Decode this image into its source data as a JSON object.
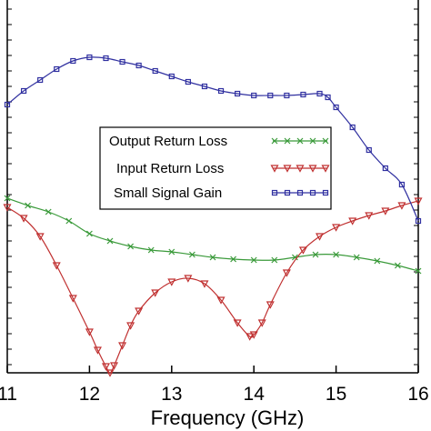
{
  "chart_data": {
    "type": "line",
    "xlabel": "Frequency (GHz)",
    "xlim": [
      11,
      16
    ],
    "x_ticks": [
      "11",
      "12",
      "13",
      "14",
      "15",
      "16"
    ],
    "grid": false,
    "legend_position": "center-right",
    "series": [
      {
        "name": "Output Return Loss",
        "color": "#3a9a3a",
        "marker": "x",
        "x": [
          11.0,
          11.25,
          11.5,
          11.75,
          12.0,
          12.25,
          12.5,
          12.75,
          13.0,
          13.25,
          13.5,
          13.75,
          14.0,
          14.25,
          14.5,
          14.75,
          15.0,
          15.25,
          15.5,
          15.75,
          16.0
        ],
        "values": [
          218,
          226,
          233,
          243,
          257,
          265,
          271,
          275,
          277,
          280,
          283,
          285,
          286,
          286,
          283,
          280,
          280,
          283,
          287,
          292,
          298
        ]
      },
      {
        "name": "Input Return Loss",
        "color": "#c03030",
        "marker": "triangle-down",
        "x": [
          11.0,
          11.2,
          11.4,
          11.6,
          11.8,
          12.0,
          12.1,
          12.2,
          12.25,
          12.3,
          12.4,
          12.5,
          12.6,
          12.8,
          13.0,
          13.2,
          13.4,
          13.6,
          13.8,
          13.95,
          14.0,
          14.1,
          14.2,
          14.4,
          14.6,
          14.8,
          15.0,
          15.2,
          15.4,
          15.6,
          15.8,
          16.0
        ],
        "values": [
          228,
          240,
          260,
          292,
          328,
          365,
          385,
          403,
          410,
          402,
          380,
          358,
          342,
          322,
          310,
          306,
          312,
          330,
          355,
          370,
          368,
          355,
          335,
          300,
          275,
          260,
          250,
          243,
          237,
          232,
          226,
          221
        ]
      },
      {
        "name": "Small Signal Gain",
        "color": "#3030a0",
        "marker": "square",
        "x": [
          11.0,
          11.2,
          11.4,
          11.6,
          11.8,
          12.0,
          12.2,
          12.4,
          12.6,
          12.8,
          13.0,
          13.2,
          13.4,
          13.6,
          13.8,
          14.0,
          14.2,
          14.4,
          14.6,
          14.8,
          14.9,
          15.0,
          15.2,
          15.4,
          15.6,
          15.8,
          16.0
        ],
        "values": [
          115,
          100,
          88,
          76,
          67,
          63,
          64,
          68,
          72,
          78,
          84,
          90,
          95,
          100,
          103,
          105,
          105,
          105,
          104,
          103,
          107,
          118,
          140,
          165,
          185,
          203,
          243
        ]
      }
    ]
  }
}
